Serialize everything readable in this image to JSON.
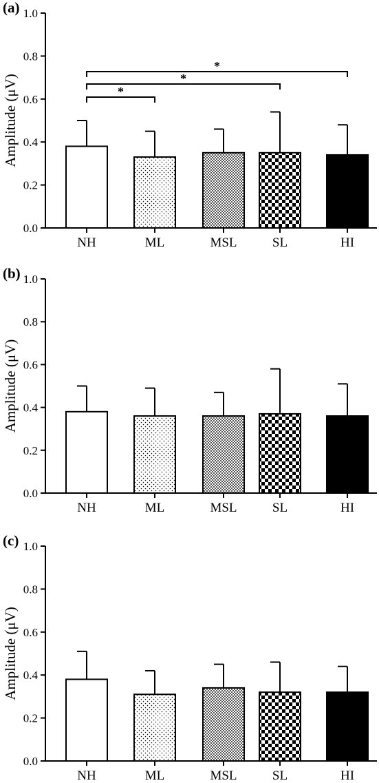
{
  "panel_titles": [
    "(a)",
    "(b)",
    "(c)"
  ],
  "colors": {
    "bar_fill_nh": "#ffffff",
    "bar_fill_hi": "#000000",
    "stroke": "#000000"
  },
  "patterns": [
    "empty",
    "sparse-dots",
    "fine-checker",
    "large-checker",
    "solid-black"
  ],
  "chart_data": [
    {
      "type": "bar",
      "panel_label": "(a)",
      "ylabel": "Amplitude (μV)",
      "xlabel": "",
      "categories": [
        "NH",
        "ML",
        "MSL",
        "SL",
        "HI"
      ],
      "values": [
        0.38,
        0.33,
        0.35,
        0.35,
        0.34
      ],
      "error_upper": [
        0.12,
        0.12,
        0.11,
        0.19,
        0.14
      ],
      "ylim": [
        0.0,
        1.0
      ],
      "yticks": [
        "0.0",
        "0.2",
        "0.4",
        "0.6",
        "0.8",
        "1.0"
      ],
      "significance": [
        {
          "from": "NH",
          "to": "ML",
          "label": "*"
        },
        {
          "from": "NH",
          "to": "SL",
          "label": "*"
        },
        {
          "from": "NH",
          "to": "HI",
          "label": "*"
        }
      ]
    },
    {
      "type": "bar",
      "panel_label": "(b)",
      "ylabel": "Amplitude (μV)",
      "xlabel": "",
      "categories": [
        "NH",
        "ML",
        "MSL",
        "SL",
        "HI"
      ],
      "values": [
        0.38,
        0.36,
        0.36,
        0.37,
        0.36
      ],
      "error_upper": [
        0.12,
        0.13,
        0.11,
        0.21,
        0.15
      ],
      "ylim": [
        0.0,
        1.0
      ],
      "yticks": [
        "0.0",
        "0.2",
        "0.4",
        "0.6",
        "0.8",
        "1.0"
      ],
      "significance": []
    },
    {
      "type": "bar",
      "panel_label": "(c)",
      "ylabel": "Amplitude (μV)",
      "xlabel": "",
      "categories": [
        "NH",
        "ML",
        "MSL",
        "SL",
        "HI"
      ],
      "values": [
        0.38,
        0.31,
        0.34,
        0.32,
        0.32
      ],
      "error_upper": [
        0.13,
        0.11,
        0.11,
        0.14,
        0.12
      ],
      "ylim": [
        0.0,
        1.0
      ],
      "yticks": [
        "0.0",
        "0.2",
        "0.4",
        "0.6",
        "0.8",
        "1.0"
      ],
      "significance": []
    }
  ]
}
